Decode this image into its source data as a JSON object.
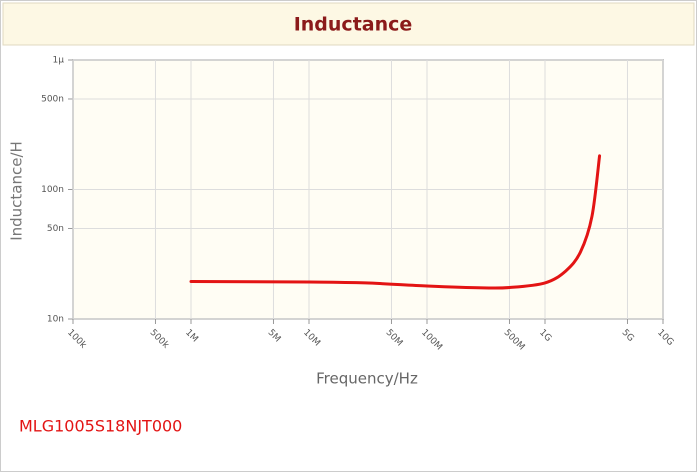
{
  "chart_data": {
    "type": "line",
    "title": "Inductance",
    "xlabel": "Frequency/Hz",
    "ylabel": "Inductance/H",
    "xscale": "log",
    "yscale": "log",
    "grid": true,
    "color": "#e31414",
    "x": [
      1000000,
      10000000,
      30000000,
      100000000,
      300000000,
      500000000,
      1000000000,
      1500000000,
      2000000000,
      2500000000,
      2900000000
    ],
    "values": [
      1.95e-08,
      1.93e-08,
      1.9e-08,
      1.8e-08,
      1.74e-08,
      1.75e-08,
      1.9e-08,
      2.35e-08,
      3.3e-08,
      6.2e-08,
      1.82e-07
    ],
    "xlim": [
      100000,
      10000000000
    ],
    "ylim": [
      1e-08,
      1e-06
    ],
    "xticks": [
      {
        "value": 100000,
        "label": "100k"
      },
      {
        "value": 500000,
        "label": "500k"
      },
      {
        "value": 1000000,
        "label": "1M"
      },
      {
        "value": 5000000,
        "label": "5M"
      },
      {
        "value": 10000000,
        "label": "10M"
      },
      {
        "value": 50000000,
        "label": "50M"
      },
      {
        "value": 100000000,
        "label": "100M"
      },
      {
        "value": 500000000,
        "label": "500M"
      },
      {
        "value": 1000000000,
        "label": "1G"
      },
      {
        "value": 5000000000,
        "label": "5G"
      },
      {
        "value": 10000000000,
        "label": "10G"
      }
    ],
    "yticks": [
      {
        "value": 1e-08,
        "label": "10n"
      },
      {
        "value": 5e-08,
        "label": "50n"
      },
      {
        "value": 1e-07,
        "label": "100n"
      },
      {
        "value": 5e-07,
        "label": "500n"
      },
      {
        "value": 1e-06,
        "label": "1μ"
      }
    ]
  },
  "part_number": "MLG1005S18NJT000"
}
